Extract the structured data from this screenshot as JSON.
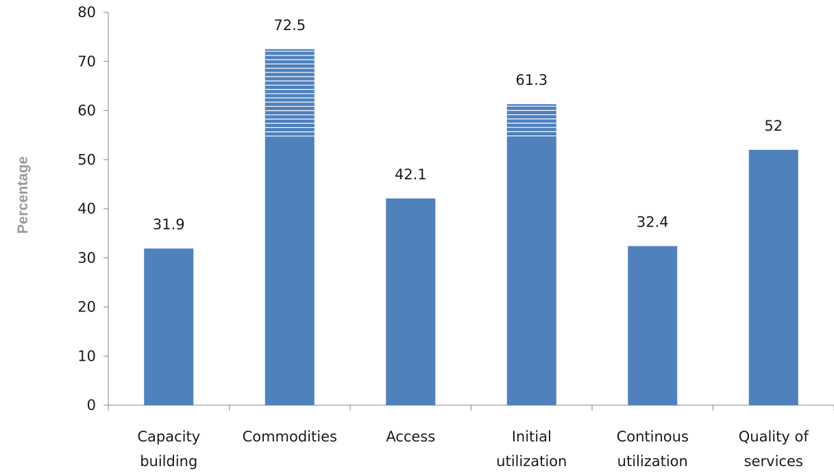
{
  "chart_data": {
    "type": "bar",
    "categories": [
      [
        "Capacity",
        "building"
      ],
      [
        "Commodities"
      ],
      [
        "Access"
      ],
      [
        "Initial",
        "utilization"
      ],
      [
        "Continous",
        "utilization"
      ],
      [
        "Quality of",
        "services"
      ]
    ],
    "values": [
      31.9,
      72.5,
      42.1,
      61.3,
      32.4,
      52
    ],
    "data_labels": [
      "31.9",
      "72.5",
      "42.1",
      "61.3",
      "32.4",
      "52"
    ],
    "ylabel": "Percentage",
    "xlabel": "",
    "ylim": [
      0,
      80
    ],
    "yticks": [
      0,
      10,
      20,
      30,
      40,
      50,
      60,
      70,
      80
    ],
    "bar_color": "#4f81bd",
    "stripe_color": "#ffffff",
    "striped_bars": [
      1,
      3
    ],
    "grid": false,
    "legend": "none"
  }
}
